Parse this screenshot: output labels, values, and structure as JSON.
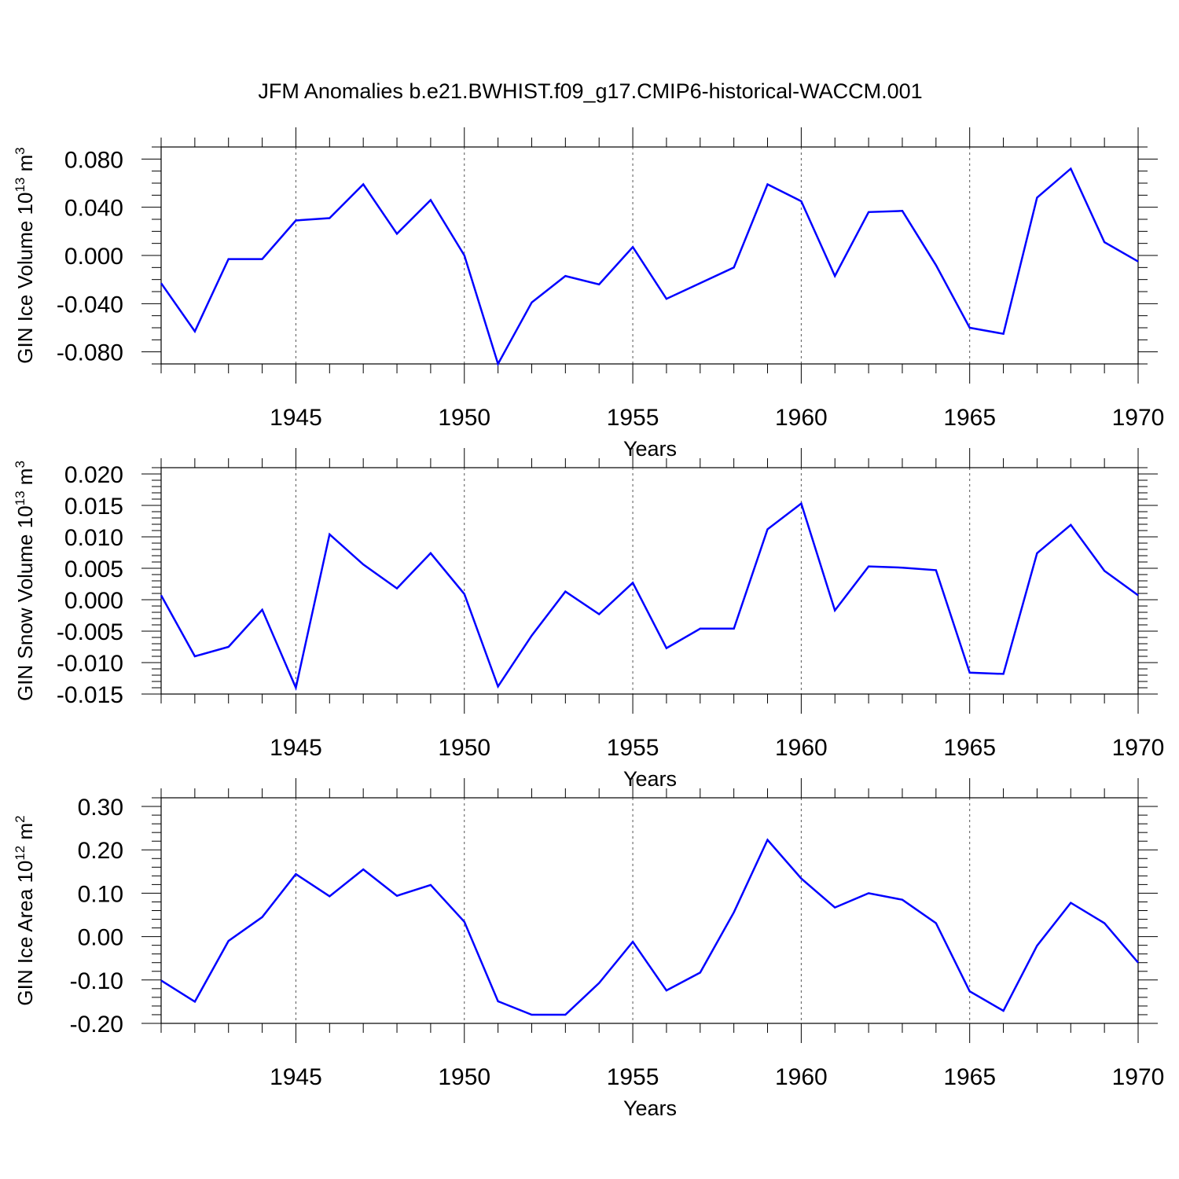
{
  "title": "JFM Anomalies b.e21.BWHIST.f09_g17.CMIP6-historical-WACCM.001",
  "colors": {
    "line": "#0000ff",
    "axis": "#000000",
    "grid": "#555555"
  },
  "chart_data": [
    {
      "type": "line",
      "ylabel_text": "GIN Ice Volume 10",
      "ylabel_exp": "13",
      "ylabel_unit": " m",
      "ylabel_unit_exp": "3",
      "xlabel": "Years",
      "xlim": [
        1941,
        1970
      ],
      "ylim": [
        -0.09,
        0.09
      ],
      "yticks": [
        -0.08,
        -0.04,
        0.0,
        0.04,
        0.08
      ],
      "ytick_labels": [
        "-0.080",
        "-0.040",
        "0.000",
        "0.040",
        "0.080"
      ],
      "xticks": [
        1945,
        1950,
        1955,
        1960,
        1965,
        1970
      ],
      "xtick_labels": [
        "1945",
        "1950",
        "1955",
        "1960",
        "1965",
        "1970"
      ],
      "grid": "dashed vertical at 1945, 1950, 1955, 1960, 1965",
      "x": [
        1941,
        1942,
        1943,
        1944,
        1945,
        1946,
        1947,
        1948,
        1949,
        1950,
        1951,
        1952,
        1953,
        1954,
        1955,
        1956,
        1957,
        1958,
        1959,
        1960,
        1961,
        1962,
        1963,
        1964,
        1965,
        1966,
        1967,
        1968,
        1969,
        1970
      ],
      "series": [
        {
          "values": [
            -0.023,
            -0.063,
            -0.003,
            -0.003,
            0.029,
            0.031,
            0.059,
            0.018,
            0.046,
            0.0,
            -0.09,
            -0.039,
            -0.017,
            -0.024,
            0.007,
            -0.036,
            -0.023,
            -0.01,
            0.059,
            0.045,
            -0.017,
            0.036,
            0.037,
            -0.008,
            -0.06,
            -0.065,
            0.048,
            0.072,
            0.011,
            -0.005
          ]
        }
      ]
    },
    {
      "type": "line",
      "ylabel_text": "GIN Snow Volume 10",
      "ylabel_exp": "13",
      "ylabel_unit": " m",
      "ylabel_unit_exp": "3",
      "xlabel": "Years",
      "xlim": [
        1941,
        1970
      ],
      "ylim": [
        -0.015,
        0.021
      ],
      "yticks": [
        -0.015,
        -0.01,
        -0.005,
        0.0,
        0.005,
        0.01,
        0.015,
        0.02
      ],
      "ytick_labels": [
        "-0.015",
        "-0.010",
        "-0.005",
        "0.000",
        "0.005",
        "0.010",
        "0.015",
        "0.020"
      ],
      "xticks": [
        1945,
        1950,
        1955,
        1960,
        1965,
        1970
      ],
      "xtick_labels": [
        "1945",
        "1950",
        "1955",
        "1960",
        "1965",
        "1970"
      ],
      "grid": "dashed vertical at 1945, 1950, 1955, 1960, 1965",
      "x": [
        1941,
        1942,
        1943,
        1944,
        1945,
        1946,
        1947,
        1948,
        1949,
        1950,
        1951,
        1952,
        1953,
        1954,
        1955,
        1956,
        1957,
        1958,
        1959,
        1960,
        1961,
        1962,
        1963,
        1964,
        1965,
        1966,
        1967,
        1968,
        1969,
        1970
      ],
      "series": [
        {
          "values": [
            0.0007,
            -0.009,
            -0.0075,
            -0.0016,
            -0.014,
            0.0104,
            0.0056,
            0.0018,
            0.0074,
            0.0009,
            -0.0138,
            -0.0057,
            0.0013,
            -0.0023,
            0.0027,
            -0.0077,
            -0.0046,
            -0.0046,
            0.0112,
            0.0153,
            -0.0017,
            0.0053,
            0.0051,
            0.0047,
            -0.0116,
            -0.0118,
            0.0074,
            0.0119,
            0.0046,
            0.0007
          ]
        }
      ]
    },
    {
      "type": "line",
      "ylabel_text": "GIN Ice Area 10",
      "ylabel_exp": "12",
      "ylabel_unit": " m",
      "ylabel_unit_exp": "2",
      "xlabel": "Years",
      "xlim": [
        1941,
        1970
      ],
      "ylim": [
        -0.2,
        0.32
      ],
      "yticks": [
        -0.2,
        -0.1,
        0.0,
        0.1,
        0.2,
        0.3
      ],
      "ytick_labels": [
        "-0.20",
        "-0.10",
        "0.00",
        "0.10",
        "0.20",
        "0.30"
      ],
      "xticks": [
        1945,
        1950,
        1955,
        1960,
        1965,
        1970
      ],
      "xtick_labels": [
        "1945",
        "1950",
        "1955",
        "1960",
        "1965",
        "1970"
      ],
      "grid": "dashed vertical at 1945, 1950, 1955, 1960, 1965",
      "x": [
        1941,
        1942,
        1943,
        1944,
        1945,
        1946,
        1947,
        1948,
        1949,
        1950,
        1951,
        1952,
        1953,
        1954,
        1955,
        1956,
        1957,
        1958,
        1959,
        1960,
        1961,
        1962,
        1963,
        1964,
        1965,
        1966,
        1967,
        1968,
        1969,
        1970
      ],
      "series": [
        {
          "values": [
            -0.101,
            -0.15,
            -0.01,
            0.045,
            0.144,
            0.093,
            0.155,
            0.094,
            0.119,
            0.034,
            -0.149,
            -0.18,
            -0.18,
            -0.107,
            -0.012,
            -0.124,
            -0.083,
            0.056,
            0.223,
            0.134,
            0.067,
            0.1,
            0.085,
            0.031,
            -0.126,
            -0.171,
            -0.021,
            0.078,
            0.031,
            -0.06
          ]
        }
      ]
    }
  ]
}
